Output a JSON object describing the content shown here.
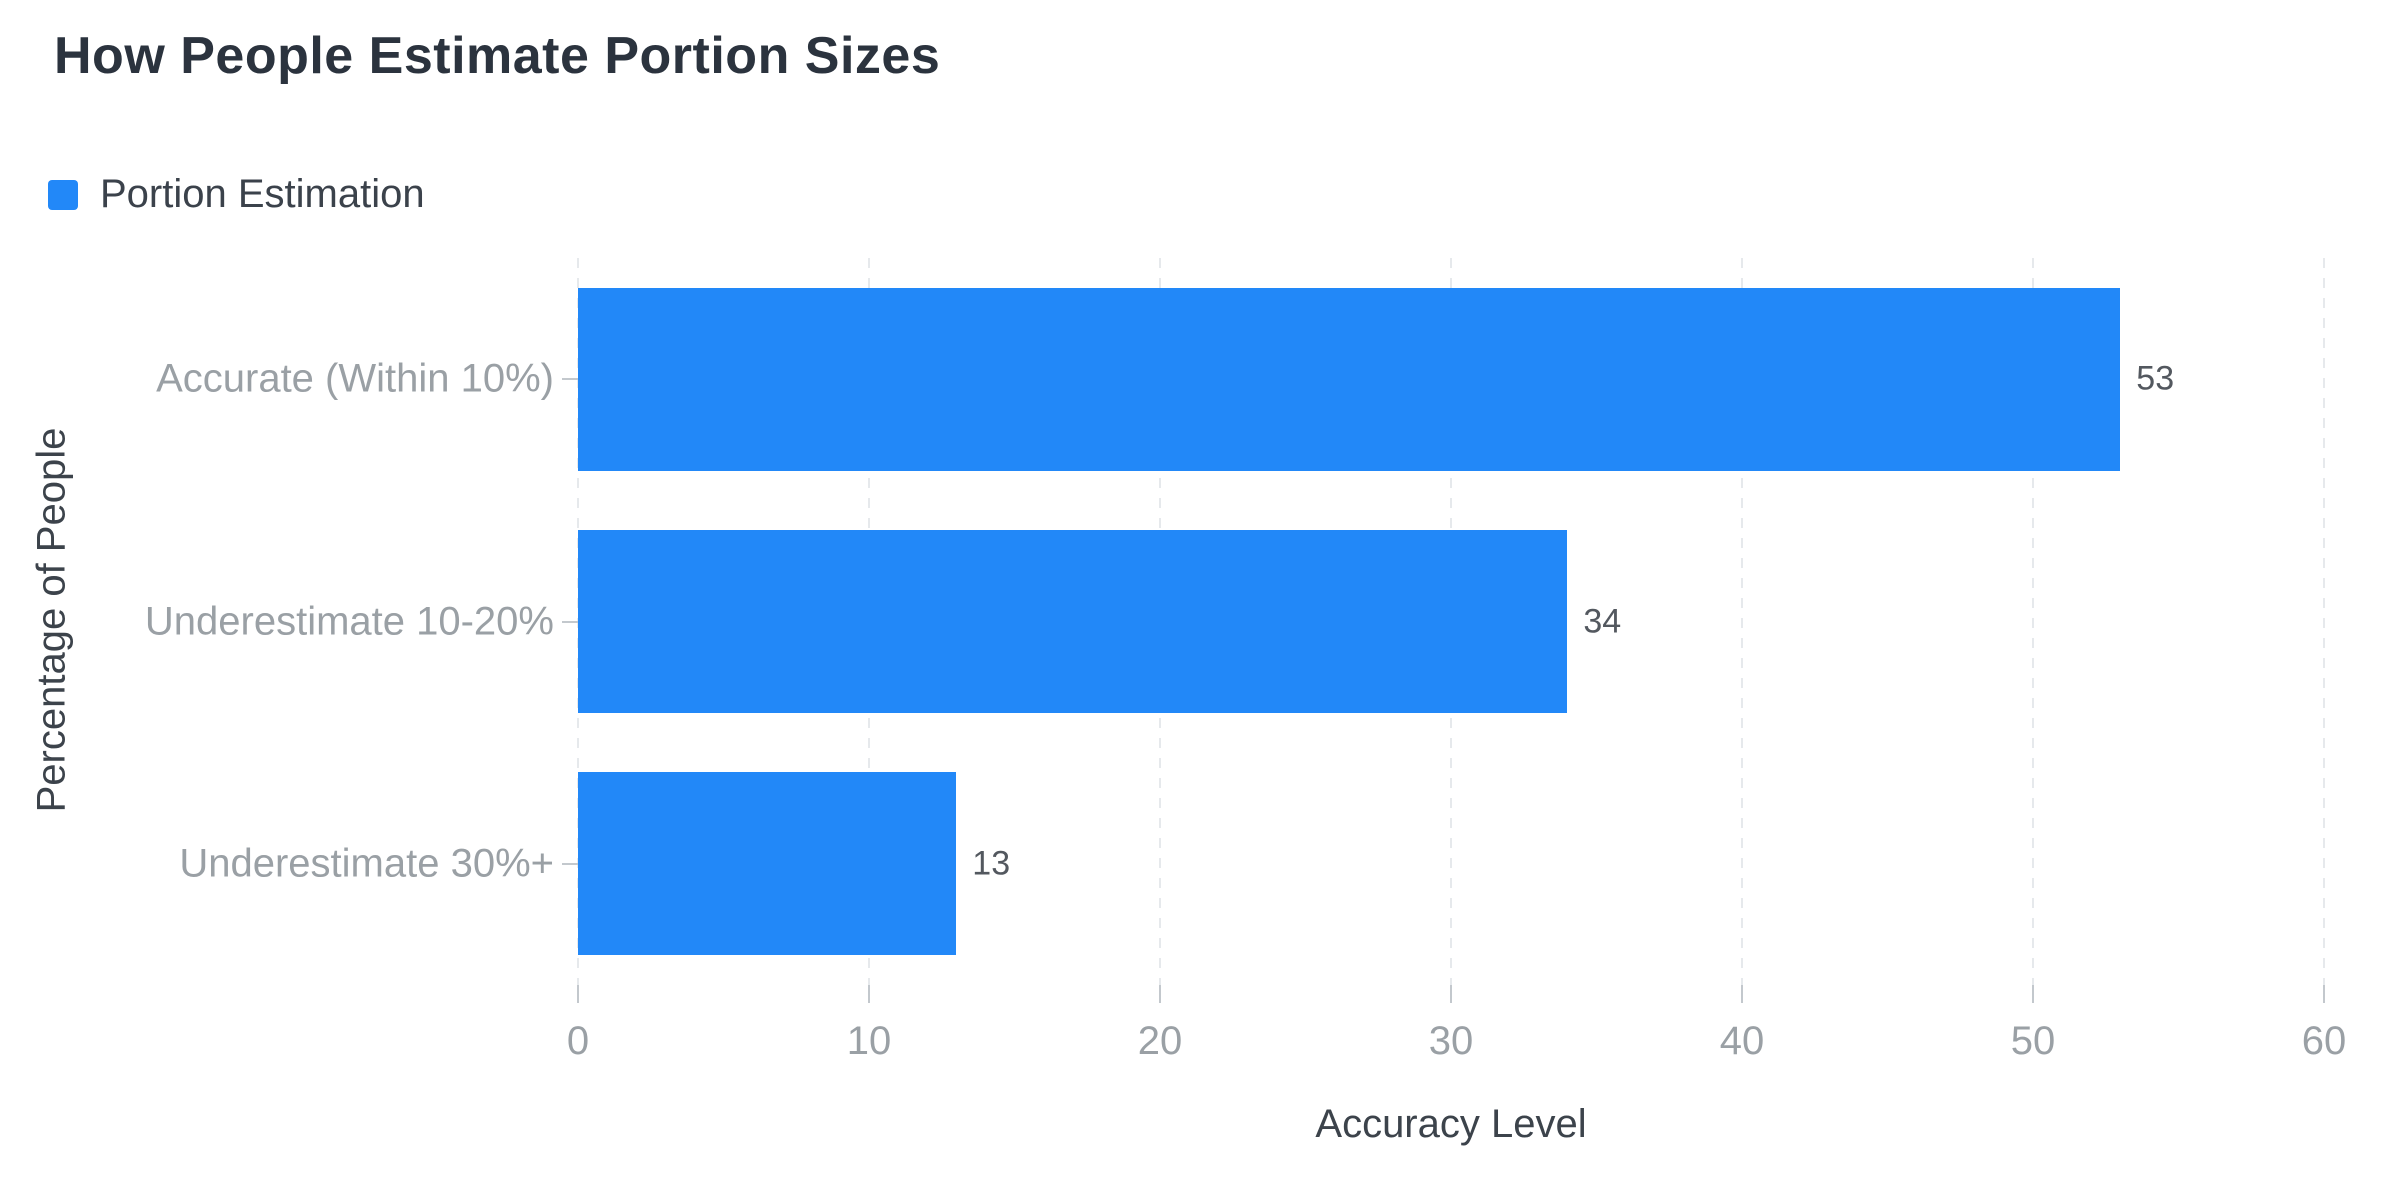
{
  "header": {
    "title": "How People Estimate Portion Sizes"
  },
  "legend": {
    "items": [
      {
        "label": "Portion Estimation",
        "color": "#2288f8"
      }
    ]
  },
  "chart_data": {
    "type": "bar",
    "orientation": "horizontal",
    "title": "How People Estimate Portion Sizes",
    "categories": [
      "Accurate (Within 10%)",
      "Underestimate 10-20%",
      "Underestimate 30%+"
    ],
    "series": [
      {
        "name": "Portion Estimation",
        "color": "#2288f8",
        "values": [
          53,
          34,
          13
        ]
      }
    ],
    "value_labels": [
      "53",
      "34",
      "13"
    ],
    "xlabel": "Accuracy Level",
    "ylabel": "Percentage of People",
    "xlim": [
      0,
      60
    ],
    "xticks": [
      "0",
      "10",
      "20",
      "30",
      "40",
      "50",
      "60"
    ],
    "grid": {
      "vertical_dashed": true,
      "horizontal": false
    },
    "legend_position": "top-left",
    "background": "#ffffff"
  },
  "colors": {
    "bar": "#2288f8",
    "title_text": "#2b333e",
    "axis_name_text": "#3c434b",
    "tick_label_text": "#9aa0a5",
    "category_label_text": "#9aa0a5",
    "value_label_text": "#53585f",
    "gridline": "#e6e9ec",
    "tick_mark": "#c3c8cd",
    "background": "#ffffff"
  }
}
